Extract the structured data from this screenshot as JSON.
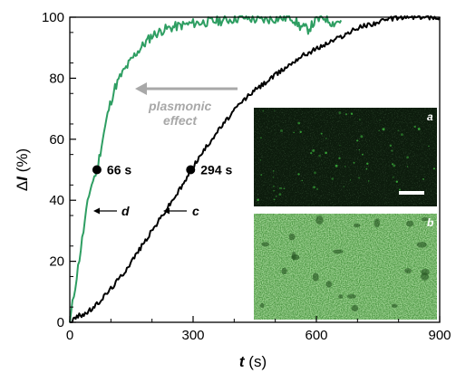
{
  "chart_data": {
    "type": "line",
    "xlabel_symbol": "t",
    "xlabel_unit": " (s)",
    "ylabel_delta": "Δ",
    "ylabel_symbol": "I",
    "ylabel_unit": " (%)",
    "xlim": [
      0,
      900
    ],
    "ylim": [
      0,
      100
    ],
    "x_ticks": [
      0,
      300,
      600,
      900
    ],
    "y_ticks": [
      0,
      20,
      40,
      60,
      80,
      100
    ],
    "grid": false,
    "series": [
      {
        "label": "d",
        "color": "#2e9e62",
        "x": [
          0,
          10,
          20,
          30,
          40,
          50,
          66,
          80,
          95,
          110,
          125,
          140,
          160,
          180,
          200,
          230,
          260,
          300,
          340,
          380,
          420,
          460,
          500,
          540,
          560,
          580,
          600,
          620,
          640,
          660
        ],
        "y": [
          0,
          9,
          18,
          27,
          36,
          44,
          50,
          60,
          70,
          77,
          81,
          84,
          88,
          91,
          94,
          96,
          97,
          98,
          98.5,
          99,
          100,
          99,
          99.5,
          100,
          97,
          96,
          99,
          100,
          98,
          99
        ]
      },
      {
        "label": "c",
        "color": "#000000",
        "x": [
          0,
          20,
          40,
          60,
          80,
          100,
          130,
          160,
          190,
          220,
          250,
          280,
          294,
          320,
          350,
          380,
          410,
          440,
          470,
          500,
          530,
          560,
          590,
          620,
          650,
          680,
          710,
          740,
          770,
          800,
          830,
          860,
          900
        ],
        "y": [
          0,
          2,
          3,
          5,
          8,
          11,
          16,
          22,
          28,
          34,
          40,
          46,
          50,
          55,
          61,
          66,
          71,
          75,
          78,
          81,
          84,
          87,
          89,
          91,
          93,
          95,
          97,
          98,
          99,
          100,
          100,
          100,
          100
        ]
      }
    ],
    "markers": [
      {
        "x": 66,
        "y": 50,
        "label": "66 s"
      },
      {
        "x": 294,
        "y": 50,
        "label": "294 s"
      }
    ],
    "annotations": {
      "arrow_d_label": "d",
      "arrow_c_label": "c",
      "plasmonic_line1": "plasmonic",
      "plasmonic_line2": "effect"
    },
    "insets": [
      {
        "panel": "a",
        "background": "#0c1a0c",
        "has_scale_bar": true
      },
      {
        "panel": "b",
        "background": "#4f9a45",
        "has_scale_bar": false
      }
    ]
  }
}
